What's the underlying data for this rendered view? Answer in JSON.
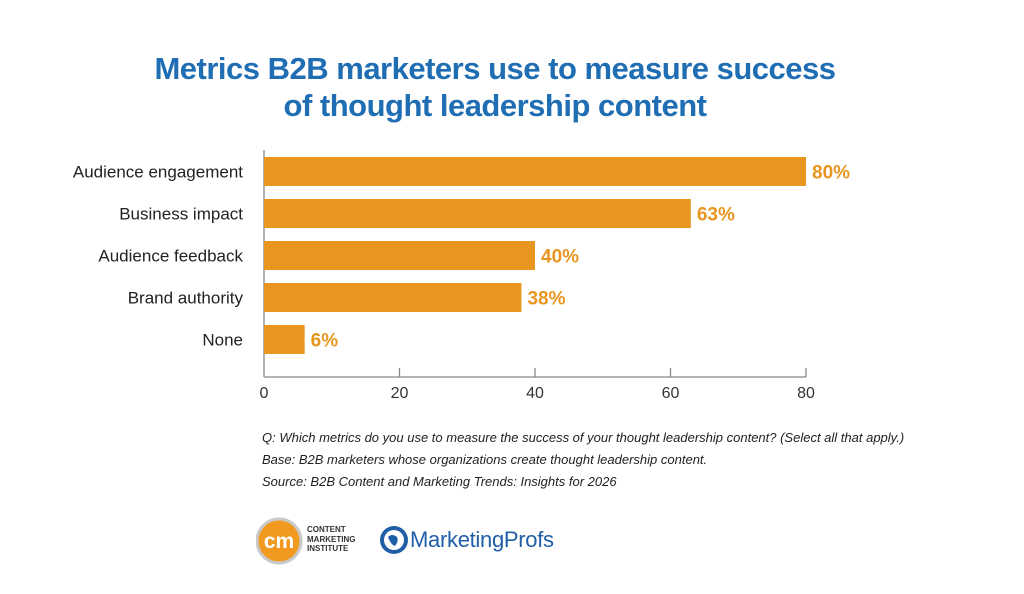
{
  "chart_data": {
    "type": "bar",
    "orientation": "horizontal",
    "title": "Metrics B2B marketers use to measure success of thought leadership content",
    "title_lines": [
      "Metrics B2B marketers use to measure success",
      "of thought leadership content"
    ],
    "categories": [
      "Audience engagement",
      "Business impact",
      "Audience feedback",
      "Brand authority",
      "None"
    ],
    "values": [
      80,
      63,
      40,
      38,
      6
    ],
    "data_labels": [
      "80%",
      "63%",
      "40%",
      "38%",
      "6%"
    ],
    "xlim": [
      0,
      80
    ],
    "xticks": [
      0,
      20,
      40,
      60,
      80
    ],
    "grid": false,
    "bar_color": "#e8961f",
    "label_color": "#e8961f",
    "title_color": "#1f6db3"
  },
  "notes": [
    "Q: Which metrics do you use to measure the success of your thought leadership content? (Select all that apply.)",
    "Base: B2B marketers whose organizations create thought leadership content.",
    "Source: B2B Content and Marketing Trends: Insights for 2026"
  ],
  "logos": {
    "cmi": {
      "mark": "cm",
      "text": [
        "CONTENT",
        "MARKETING",
        "INSTITUTE"
      ]
    },
    "marketingprofs": {
      "text": "MarketingProfs"
    }
  }
}
